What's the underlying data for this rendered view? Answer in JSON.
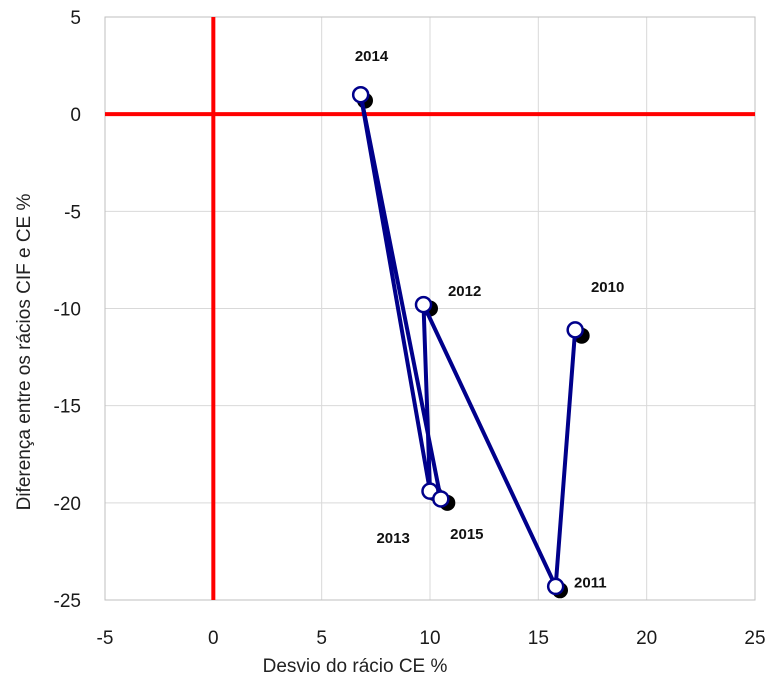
{
  "chart_data": {
    "type": "scatter",
    "title": "",
    "xlabel": "Desvio do rácio CE %",
    "ylabel": "Diferença entre os rácios CIF e CE %",
    "xlim": [
      -5,
      25
    ],
    "ylim": [
      -25,
      5
    ],
    "xticks": [
      -5,
      0,
      5,
      10,
      15,
      20,
      25
    ],
    "yticks": [
      5,
      0,
      -5,
      -10,
      -15,
      -20,
      -25
    ],
    "grid": true,
    "legend": "none",
    "reference_lines": {
      "x": 0,
      "y": 0,
      "color": "#ff0000"
    },
    "series": [
      {
        "style": "filled-markers",
        "color": "#000000",
        "points": [
          {
            "year": "2010",
            "x": 17.0,
            "y": -11.4
          },
          {
            "year": "2011",
            "x": 16.0,
            "y": -24.5
          },
          {
            "year": "2012",
            "x": 10.0,
            "y": -10.0
          },
          {
            "year": "2013",
            "x": 10.2,
            "y": -19.5
          },
          {
            "year": "2014",
            "x": 7.0,
            "y": 0.7
          },
          {
            "year": "2015",
            "x": 10.8,
            "y": -20.0
          }
        ]
      },
      {
        "style": "connected-open-markers",
        "color": "#00008b",
        "points": [
          {
            "year": "2010",
            "x": 16.7,
            "y": -11.1
          },
          {
            "year": "2011",
            "x": 15.8,
            "y": -24.3
          },
          {
            "year": "2012",
            "x": 9.7,
            "y": -9.8
          },
          {
            "year": "2013",
            "x": 10.0,
            "y": -19.4
          },
          {
            "year": "2014",
            "x": 6.8,
            "y": 1.0
          },
          {
            "year": "2015",
            "x": 10.5,
            "y": -19.8
          }
        ]
      }
    ],
    "labels": [
      {
        "text": "2014",
        "x": 7.3,
        "y": 3.0
      },
      {
        "text": "2012",
        "x": 11.6,
        "y": -9.1
      },
      {
        "text": "2010",
        "x": 18.2,
        "y": -8.9
      },
      {
        "text": "2013",
        "x": 8.3,
        "y": -21.8
      },
      {
        "text": "2015",
        "x": 11.7,
        "y": -21.6
      },
      {
        "text": "2011",
        "x": 17.4,
        "y": -24.1
      }
    ]
  }
}
